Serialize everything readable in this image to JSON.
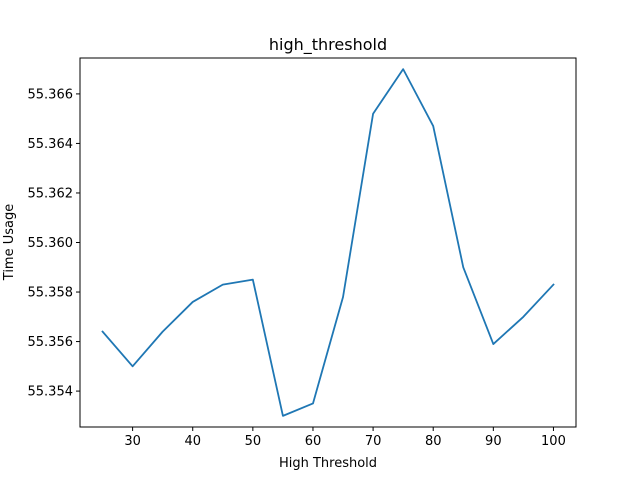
{
  "chart_data": {
    "type": "line",
    "title": "high_threshold",
    "xlabel": "High Threshold",
    "ylabel": "Time Usage",
    "xlim": [
      21.25,
      103.75
    ],
    "ylim": [
      55.35255,
      55.36745
    ],
    "grid": false,
    "x_ticks": [
      30,
      40,
      50,
      60,
      70,
      80,
      90,
      100
    ],
    "y_ticks": [
      55.354,
      55.356,
      55.358,
      55.36,
      55.362,
      55.364,
      55.366
    ],
    "y_tick_labels": [
      "55.354",
      "55.356",
      "55.358",
      "55.360",
      "55.362",
      "55.364",
      "55.366"
    ],
    "series": [
      {
        "color": "#1f77b4",
        "x": [
          25,
          30,
          35,
          40,
          45,
          50,
          55,
          60,
          65,
          70,
          75,
          80,
          85,
          90,
          95,
          100
        ],
        "y": [
          55.3564,
          55.355,
          55.3564,
          55.3576,
          55.3583,
          55.3585,
          55.353,
          55.3535,
          55.3578,
          55.3652,
          55.367,
          55.3647,
          55.359,
          55.3559,
          55.357,
          55.3583
        ]
      }
    ]
  }
}
